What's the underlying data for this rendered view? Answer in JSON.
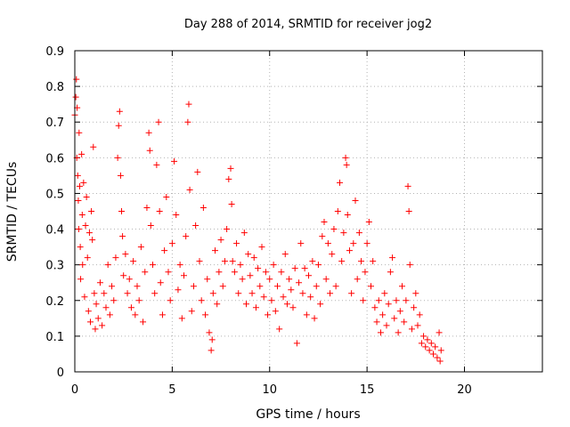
{
  "chart_data": {
    "type": "scatter",
    "title": "Day 288 of 2014, SRMTID for receiver jog2",
    "xlabel": "GPS time / hours",
    "ylabel": "SRMTID / TECUs",
    "xlim": [
      0,
      24
    ],
    "ylim": [
      0,
      0.9
    ],
    "xticks": [
      0,
      5,
      10,
      15,
      20
    ],
    "yticks": [
      0,
      0.1,
      0.2,
      0.3,
      0.4,
      0.5,
      0.6,
      0.7,
      0.8,
      0.9
    ],
    "xtick_labels": [
      "0",
      "5",
      "10",
      "15",
      "20"
    ],
    "ytick_labels": [
      "0",
      "0.1",
      "0.2",
      "0.3",
      "0.4",
      "0.5",
      "0.6",
      "0.7",
      "0.8",
      "0.9"
    ],
    "grid": true,
    "marker": "plus",
    "color": "#ff0000",
    "series": [
      {
        "name": "SRMTID",
        "points": [
          [
            0.0,
            0.72
          ],
          [
            0.05,
            0.77
          ],
          [
            0.08,
            0.82
          ],
          [
            0.1,
            0.6
          ],
          [
            0.12,
            0.74
          ],
          [
            0.15,
            0.55
          ],
          [
            0.18,
            0.48
          ],
          [
            0.2,
            0.4
          ],
          [
            0.22,
            0.67
          ],
          [
            0.25,
            0.52
          ],
          [
            0.28,
            0.35
          ],
          [
            0.3,
            0.26
          ],
          [
            0.35,
            0.61
          ],
          [
            0.38,
            0.44
          ],
          [
            0.4,
            0.3
          ],
          [
            0.45,
            0.53
          ],
          [
            0.5,
            0.21
          ],
          [
            0.55,
            0.41
          ],
          [
            0.6,
            0.49
          ],
          [
            0.65,
            0.32
          ],
          [
            0.7,
            0.17
          ],
          [
            0.75,
            0.39
          ],
          [
            0.8,
            0.14
          ],
          [
            0.85,
            0.45
          ],
          [
            0.9,
            0.37
          ],
          [
            0.95,
            0.63
          ],
          [
            1.0,
            0.22
          ],
          [
            1.05,
            0.12
          ],
          [
            1.1,
            0.19
          ],
          [
            1.2,
            0.15
          ],
          [
            1.3,
            0.25
          ],
          [
            1.4,
            0.13
          ],
          [
            1.5,
            0.22
          ],
          [
            1.6,
            0.18
          ],
          [
            1.7,
            0.3
          ],
          [
            1.8,
            0.16
          ],
          [
            1.9,
            0.24
          ],
          [
            2.0,
            0.2
          ],
          [
            2.1,
            0.32
          ],
          [
            2.2,
            0.6
          ],
          [
            2.25,
            0.69
          ],
          [
            2.3,
            0.73
          ],
          [
            2.35,
            0.55
          ],
          [
            2.4,
            0.45
          ],
          [
            2.45,
            0.38
          ],
          [
            2.5,
            0.27
          ],
          [
            2.6,
            0.33
          ],
          [
            2.7,
            0.22
          ],
          [
            2.8,
            0.26
          ],
          [
            2.9,
            0.18
          ],
          [
            3.0,
            0.31
          ],
          [
            3.1,
            0.16
          ],
          [
            3.2,
            0.24
          ],
          [
            3.3,
            0.2
          ],
          [
            3.4,
            0.35
          ],
          [
            3.5,
            0.14
          ],
          [
            3.6,
            0.28
          ],
          [
            3.7,
            0.46
          ],
          [
            3.8,
            0.67
          ],
          [
            3.85,
            0.62
          ],
          [
            3.9,
            0.41
          ],
          [
            4.0,
            0.3
          ],
          [
            4.1,
            0.22
          ],
          [
            4.2,
            0.58
          ],
          [
            4.3,
            0.7
          ],
          [
            4.35,
            0.45
          ],
          [
            4.4,
            0.25
          ],
          [
            4.5,
            0.16
          ],
          [
            4.6,
            0.34
          ],
          [
            4.7,
            0.49
          ],
          [
            4.8,
            0.28
          ],
          [
            4.9,
            0.2
          ],
          [
            5.0,
            0.36
          ],
          [
            5.1,
            0.59
          ],
          [
            5.2,
            0.44
          ],
          [
            5.3,
            0.23
          ],
          [
            5.4,
            0.3
          ],
          [
            5.5,
            0.15
          ],
          [
            5.6,
            0.27
          ],
          [
            5.7,
            0.38
          ],
          [
            5.8,
            0.7
          ],
          [
            5.85,
            0.75
          ],
          [
            5.9,
            0.51
          ],
          [
            6.0,
            0.17
          ],
          [
            6.1,
            0.24
          ],
          [
            6.2,
            0.41
          ],
          [
            6.3,
            0.56
          ],
          [
            6.4,
            0.31
          ],
          [
            6.5,
            0.2
          ],
          [
            6.6,
            0.46
          ],
          [
            6.7,
            0.16
          ],
          [
            6.8,
            0.26
          ],
          [
            6.9,
            0.11
          ],
          [
            7.0,
            0.06
          ],
          [
            7.05,
            0.09
          ],
          [
            7.1,
            0.22
          ],
          [
            7.2,
            0.34
          ],
          [
            7.3,
            0.19
          ],
          [
            7.4,
            0.28
          ],
          [
            7.5,
            0.37
          ],
          [
            7.6,
            0.24
          ],
          [
            7.7,
            0.31
          ],
          [
            7.8,
            0.4
          ],
          [
            7.9,
            0.54
          ],
          [
            8.0,
            0.57
          ],
          [
            8.05,
            0.47
          ],
          [
            8.1,
            0.31
          ],
          [
            8.2,
            0.28
          ],
          [
            8.3,
            0.36
          ],
          [
            8.4,
            0.22
          ],
          [
            8.5,
            0.3
          ],
          [
            8.6,
            0.26
          ],
          [
            8.7,
            0.39
          ],
          [
            8.8,
            0.19
          ],
          [
            8.9,
            0.33
          ],
          [
            9.0,
            0.27
          ],
          [
            9.1,
            0.22
          ],
          [
            9.2,
            0.32
          ],
          [
            9.3,
            0.18
          ],
          [
            9.4,
            0.29
          ],
          [
            9.5,
            0.24
          ],
          [
            9.6,
            0.35
          ],
          [
            9.7,
            0.21
          ],
          [
            9.8,
            0.28
          ],
          [
            9.9,
            0.16
          ],
          [
            10.0,
            0.26
          ],
          [
            10.1,
            0.2
          ],
          [
            10.2,
            0.3
          ],
          [
            10.3,
            0.17
          ],
          [
            10.4,
            0.24
          ],
          [
            10.5,
            0.12
          ],
          [
            10.6,
            0.28
          ],
          [
            10.7,
            0.21
          ],
          [
            10.8,
            0.33
          ],
          [
            10.9,
            0.19
          ],
          [
            11.0,
            0.26
          ],
          [
            11.1,
            0.23
          ],
          [
            11.2,
            0.18
          ],
          [
            11.3,
            0.29
          ],
          [
            11.4,
            0.08
          ],
          [
            11.5,
            0.25
          ],
          [
            11.6,
            0.36
          ],
          [
            11.7,
            0.22
          ],
          [
            11.8,
            0.29
          ],
          [
            11.9,
            0.16
          ],
          [
            12.0,
            0.27
          ],
          [
            12.1,
            0.21
          ],
          [
            12.2,
            0.31
          ],
          [
            12.3,
            0.15
          ],
          [
            12.4,
            0.24
          ],
          [
            12.5,
            0.3
          ],
          [
            12.6,
            0.19
          ],
          [
            12.7,
            0.38
          ],
          [
            12.8,
            0.42
          ],
          [
            12.9,
            0.26
          ],
          [
            13.0,
            0.36
          ],
          [
            13.1,
            0.22
          ],
          [
            13.2,
            0.33
          ],
          [
            13.3,
            0.4
          ],
          [
            13.4,
            0.24
          ],
          [
            13.5,
            0.45
          ],
          [
            13.6,
            0.53
          ],
          [
            13.7,
            0.31
          ],
          [
            13.8,
            0.39
          ],
          [
            13.9,
            0.6
          ],
          [
            13.95,
            0.58
          ],
          [
            14.0,
            0.44
          ],
          [
            14.1,
            0.34
          ],
          [
            14.2,
            0.22
          ],
          [
            14.3,
            0.36
          ],
          [
            14.4,
            0.48
          ],
          [
            14.5,
            0.26
          ],
          [
            14.6,
            0.39
          ],
          [
            14.7,
            0.31
          ],
          [
            14.8,
            0.2
          ],
          [
            14.9,
            0.28
          ],
          [
            15.0,
            0.36
          ],
          [
            15.1,
            0.42
          ],
          [
            15.2,
            0.24
          ],
          [
            15.3,
            0.31
          ],
          [
            15.4,
            0.18
          ],
          [
            15.5,
            0.14
          ],
          [
            15.6,
            0.2
          ],
          [
            15.7,
            0.11
          ],
          [
            15.8,
            0.16
          ],
          [
            15.9,
            0.22
          ],
          [
            16.0,
            0.13
          ],
          [
            16.1,
            0.19
          ],
          [
            16.2,
            0.28
          ],
          [
            16.3,
            0.32
          ],
          [
            16.4,
            0.15
          ],
          [
            16.5,
            0.2
          ],
          [
            16.6,
            0.11
          ],
          [
            16.7,
            0.17
          ],
          [
            16.8,
            0.24
          ],
          [
            16.9,
            0.14
          ],
          [
            17.0,
            0.2
          ],
          [
            17.1,
            0.52
          ],
          [
            17.15,
            0.45
          ],
          [
            17.2,
            0.3
          ],
          [
            17.3,
            0.12
          ],
          [
            17.4,
            0.18
          ],
          [
            17.5,
            0.22
          ],
          [
            17.6,
            0.13
          ],
          [
            17.7,
            0.16
          ],
          [
            17.8,
            0.08
          ],
          [
            17.9,
            0.1
          ],
          [
            18.0,
            0.07
          ],
          [
            18.1,
            0.09
          ],
          [
            18.2,
            0.06
          ],
          [
            18.3,
            0.08
          ],
          [
            18.4,
            0.05
          ],
          [
            18.5,
            0.07
          ],
          [
            18.6,
            0.04
          ],
          [
            18.7,
            0.11
          ],
          [
            18.75,
            0.03
          ],
          [
            18.8,
            0.06
          ]
        ]
      }
    ]
  }
}
